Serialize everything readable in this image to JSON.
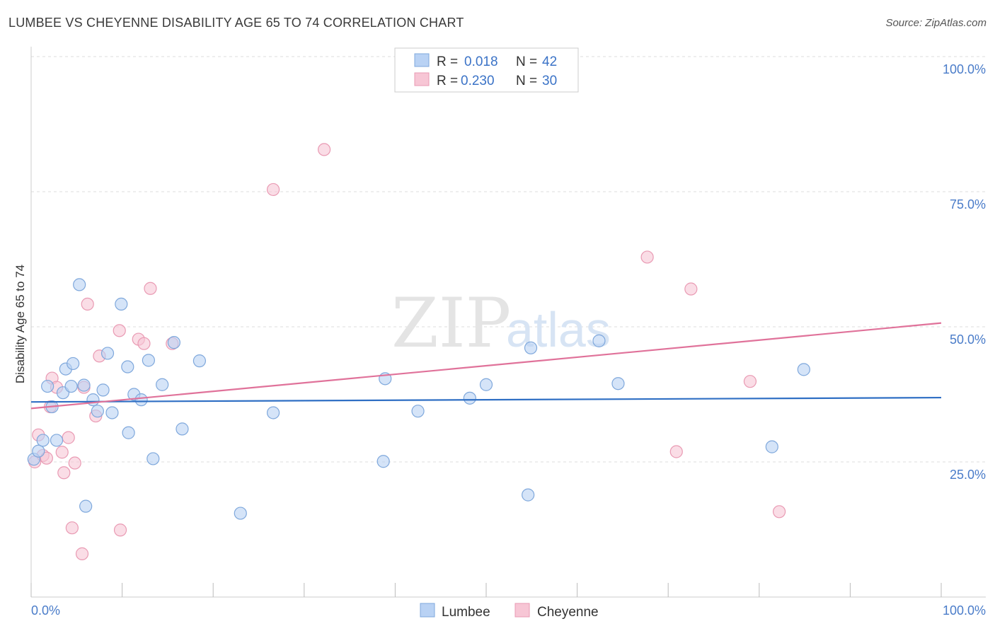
{
  "title": "LUMBEE VS CHEYENNE DISABILITY AGE 65 TO 74 CORRELATION CHART",
  "source": "Source: ZipAtlas.com",
  "watermark": {
    "zip": "ZIP",
    "atlas": "atlas"
  },
  "colors": {
    "lumbee_fill": "#b9d2f4",
    "lumbee_stroke": "#7fa8dc",
    "lumbee_line": "#2f6fc4",
    "cheyenne_fill": "#f7c6d5",
    "cheyenne_stroke": "#e99ab3",
    "cheyenne_line": "#e0729a",
    "grid": "#dddddd",
    "axis_text": "#4a7cc9"
  },
  "legend_top": {
    "rows": [
      {
        "r_label": "R = ",
        "r_value": "0.018",
        "n_label": "N = ",
        "n_value": "42"
      },
      {
        "r_label": "R = ",
        "r_value": "0.230",
        "n_label": "N = ",
        "n_value": "30"
      }
    ]
  },
  "legend_bottom": {
    "items": [
      "Lumbee",
      "Cheyenne"
    ]
  },
  "chart_data": {
    "type": "scatter",
    "title": "LUMBEE VS CHEYENNE DISABILITY AGE 65 TO 74 CORRELATION CHART",
    "xlabel": "",
    "ylabel": "Disability Age 65 to 74",
    "xlim": [
      0,
      100
    ],
    "ylim": [
      0,
      100
    ],
    "x_tick_labels": [
      "0.0%",
      "100.0%"
    ],
    "y_ticks": [
      25,
      50,
      75,
      100
    ],
    "y_tick_labels": [
      "25.0%",
      "50.0%",
      "75.0%",
      "100.0%"
    ],
    "grid": true,
    "legend_position": "top-center",
    "series": [
      {
        "name": "Lumbee",
        "r": 0.018,
        "n": 42,
        "trend": {
          "x": [
            0,
            100
          ],
          "y": [
            36.1,
            36.9
          ]
        },
        "points": [
          {
            "x": 0.3,
            "y": 25.5
          },
          {
            "x": 0.8,
            "y": 27.0
          },
          {
            "x": 1.3,
            "y": 29.0
          },
          {
            "x": 1.8,
            "y": 39.0
          },
          {
            "x": 2.3,
            "y": 35.2
          },
          {
            "x": 2.8,
            "y": 29.0
          },
          {
            "x": 3.5,
            "y": 37.8
          },
          {
            "x": 3.8,
            "y": 42.2
          },
          {
            "x": 4.4,
            "y": 39.0
          },
          {
            "x": 4.6,
            "y": 43.2
          },
          {
            "x": 5.3,
            "y": 57.8
          },
          {
            "x": 5.8,
            "y": 39.2
          },
          {
            "x": 6.0,
            "y": 16.8
          },
          {
            "x": 6.8,
            "y": 36.5
          },
          {
            "x": 7.3,
            "y": 34.4
          },
          {
            "x": 7.9,
            "y": 38.3
          },
          {
            "x": 8.4,
            "y": 45.1
          },
          {
            "x": 8.9,
            "y": 34.1
          },
          {
            "x": 9.9,
            "y": 54.2
          },
          {
            "x": 10.6,
            "y": 42.6
          },
          {
            "x": 10.7,
            "y": 30.4
          },
          {
            "x": 11.3,
            "y": 37.5
          },
          {
            "x": 12.1,
            "y": 36.5
          },
          {
            "x": 12.9,
            "y": 43.8
          },
          {
            "x": 13.4,
            "y": 25.6
          },
          {
            "x": 14.4,
            "y": 39.3
          },
          {
            "x": 15.7,
            "y": 47.1
          },
          {
            "x": 16.6,
            "y": 31.1
          },
          {
            "x": 18.5,
            "y": 43.7
          },
          {
            "x": 23.0,
            "y": 15.5
          },
          {
            "x": 26.6,
            "y": 34.1
          },
          {
            "x": 38.7,
            "y": 25.1
          },
          {
            "x": 38.9,
            "y": 40.4
          },
          {
            "x": 42.5,
            "y": 34.4
          },
          {
            "x": 48.2,
            "y": 36.8
          },
          {
            "x": 50.0,
            "y": 39.3
          },
          {
            "x": 54.6,
            "y": 18.9
          },
          {
            "x": 54.9,
            "y": 46.1
          },
          {
            "x": 62.4,
            "y": 47.4
          },
          {
            "x": 64.5,
            "y": 39.5
          },
          {
            "x": 81.4,
            "y": 27.8
          },
          {
            "x": 84.9,
            "y": 42.1
          }
        ]
      },
      {
        "name": "Cheyenne",
        "r": 0.23,
        "n": 30,
        "trend": {
          "x": [
            0,
            100
          ],
          "y": [
            34.9,
            50.7
          ]
        },
        "points": [
          {
            "x": 0.4,
            "y": 25.0
          },
          {
            "x": 0.8,
            "y": 30.0
          },
          {
            "x": 1.3,
            "y": 26.2
          },
          {
            "x": 1.7,
            "y": 25.7
          },
          {
            "x": 2.1,
            "y": 35.2
          },
          {
            "x": 2.3,
            "y": 40.5
          },
          {
            "x": 2.8,
            "y": 38.8
          },
          {
            "x": 3.4,
            "y": 26.8
          },
          {
            "x": 3.6,
            "y": 23.0
          },
          {
            "x": 4.1,
            "y": 29.5
          },
          {
            "x": 4.5,
            "y": 12.8
          },
          {
            "x": 4.8,
            "y": 24.8
          },
          {
            "x": 5.6,
            "y": 8.0
          },
          {
            "x": 5.8,
            "y": 38.8
          },
          {
            "x": 6.2,
            "y": 54.2
          },
          {
            "x": 7.1,
            "y": 33.5
          },
          {
            "x": 7.5,
            "y": 44.6
          },
          {
            "x": 9.8,
            "y": 12.4
          },
          {
            "x": 9.7,
            "y": 49.3
          },
          {
            "x": 11.8,
            "y": 47.7
          },
          {
            "x": 12.4,
            "y": 46.9
          },
          {
            "x": 13.1,
            "y": 57.1
          },
          {
            "x": 15.5,
            "y": 46.9
          },
          {
            "x": 26.6,
            "y": 75.4
          },
          {
            "x": 32.2,
            "y": 82.8
          },
          {
            "x": 67.7,
            "y": 62.9
          },
          {
            "x": 70.9,
            "y": 26.9
          },
          {
            "x": 72.5,
            "y": 57.0
          },
          {
            "x": 79.0,
            "y": 39.9
          },
          {
            "x": 82.2,
            "y": 15.8
          }
        ]
      }
    ]
  }
}
